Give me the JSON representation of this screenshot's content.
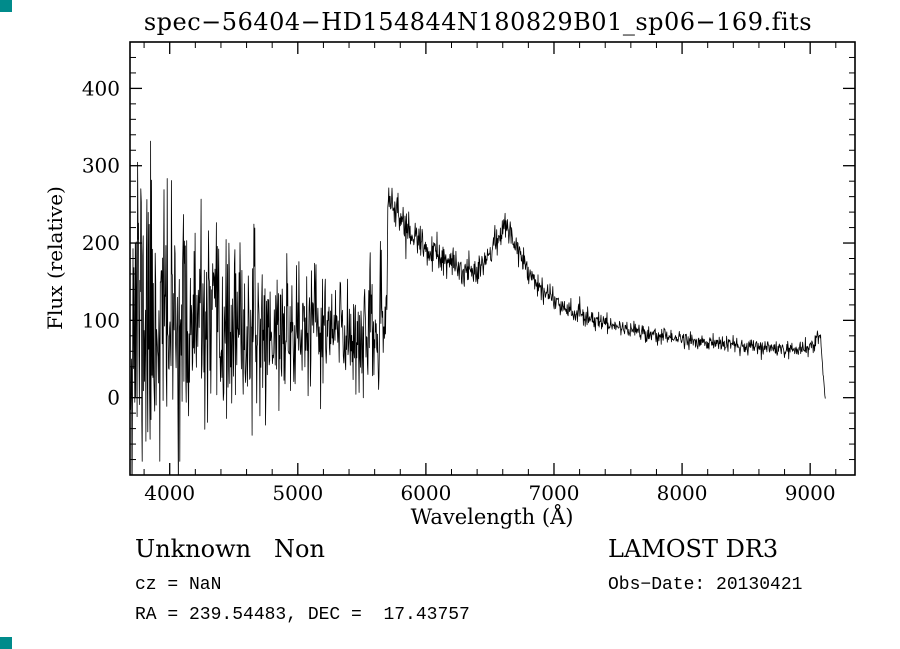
{
  "window": {
    "background": "#ffffff"
  },
  "artifacts": {
    "color": "#008b8b"
  },
  "chart_data": {
    "type": "line",
    "title": "spec−56404−HD154844N180829B01_sp06−169.fits",
    "xlabel": "Wavelength (Å)",
    "ylabel": "Flux (relative)",
    "xlim": [
      3690,
      9350
    ],
    "ylim": [
      -100,
      460
    ],
    "xticks": [
      4000,
      5000,
      6000,
      7000,
      8000,
      9000
    ],
    "xminor_step": 200,
    "yticks": [
      0,
      100,
      200,
      300,
      400
    ],
    "yminor_step": 20,
    "grid": false,
    "legend": null,
    "line_color": "#000000",
    "background": "#ffffff",
    "series_name": "flux",
    "wl_range": [
      3695,
      9118
    ],
    "n_samples": 1500,
    "seed": 11,
    "continuum": {
      "wavelength": [
        3695,
        3800,
        4000,
        4300,
        4600,
        5000,
        5300,
        5600,
        5690,
        5705,
        5740,
        5800,
        5900,
        6000,
        6100,
        6200,
        6300,
        6400,
        6500,
        6560,
        6620,
        6680,
        6760,
        6850,
        7000,
        7200,
        7400,
        7600,
        7800,
        8000,
        8300,
        8600,
        8900,
        9000,
        9050,
        9080,
        9100,
        9118
      ],
      "flux": [
        115,
        105,
        95,
        85,
        82,
        88,
        84,
        80,
        85,
        268,
        248,
        232,
        208,
        192,
        181,
        171,
        164,
        168,
        186,
        208,
        221,
        207,
        178,
        152,
        126,
        108,
        96,
        88,
        81,
        76,
        69,
        65,
        63,
        66,
        74,
        84,
        30,
        2
      ]
    },
    "noise_sigma": {
      "wavelength": [
        3695,
        3750,
        3900,
        4100,
        4300,
        4600,
        5000,
        5400,
        5690,
        5705,
        6000,
        6500,
        7000,
        7500,
        8000,
        8500,
        9000,
        9118
      ],
      "sigma": [
        115,
        125,
        90,
        72,
        60,
        50,
        42,
        38,
        34,
        13,
        11,
        9,
        8,
        6,
        5.5,
        5,
        5,
        4
      ]
    }
  },
  "footer": {
    "class_text": "Unknown   Non",
    "survey": "LAMOST DR3",
    "cz": "cz = NaN",
    "obs_date": "Obs−Date: 20130421",
    "ra_dec": "RA = 239.54483, DEC =  17.43757"
  }
}
